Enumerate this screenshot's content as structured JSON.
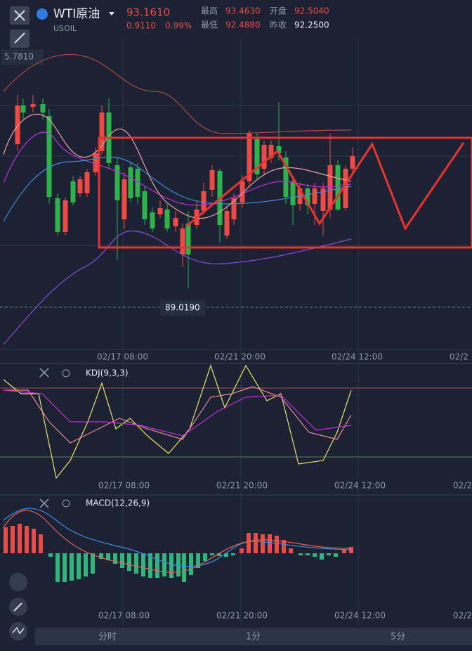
{
  "header": {
    "symbol": "WTI原油",
    "code": "USOIL",
    "price": "93.1610",
    "change": "0.9110",
    "change_pct": "0.99%",
    "stats": [
      {
        "label": "最高",
        "value": "93.4630"
      },
      {
        "label": "开盘",
        "value": "92.5040"
      },
      {
        "label": "最低",
        "value": "92.4880"
      },
      {
        "label": "昨收",
        "value": "92.2500"
      }
    ]
  },
  "main_chart": {
    "price_labels": [
      "5.7810",
      "89.0190"
    ],
    "time_labels": [
      "02/17 08:00",
      "02/21 20:00",
      "02/24 12:00",
      "02/2"
    ]
  },
  "kdj": {
    "label": "KDJ(9,3,3)",
    "time_labels": [
      "02/17 08:00",
      "02/21 20:00",
      "02/24 12:00",
      "02/2"
    ]
  },
  "macd": {
    "label": "MACD(12,26,9)",
    "time_labels": [
      "02/17 08:00",
      "02/21 20:00",
      "02/24 12:00",
      "02/2"
    ]
  },
  "tabs": [
    "分时",
    "1分",
    "5分"
  ]
}
